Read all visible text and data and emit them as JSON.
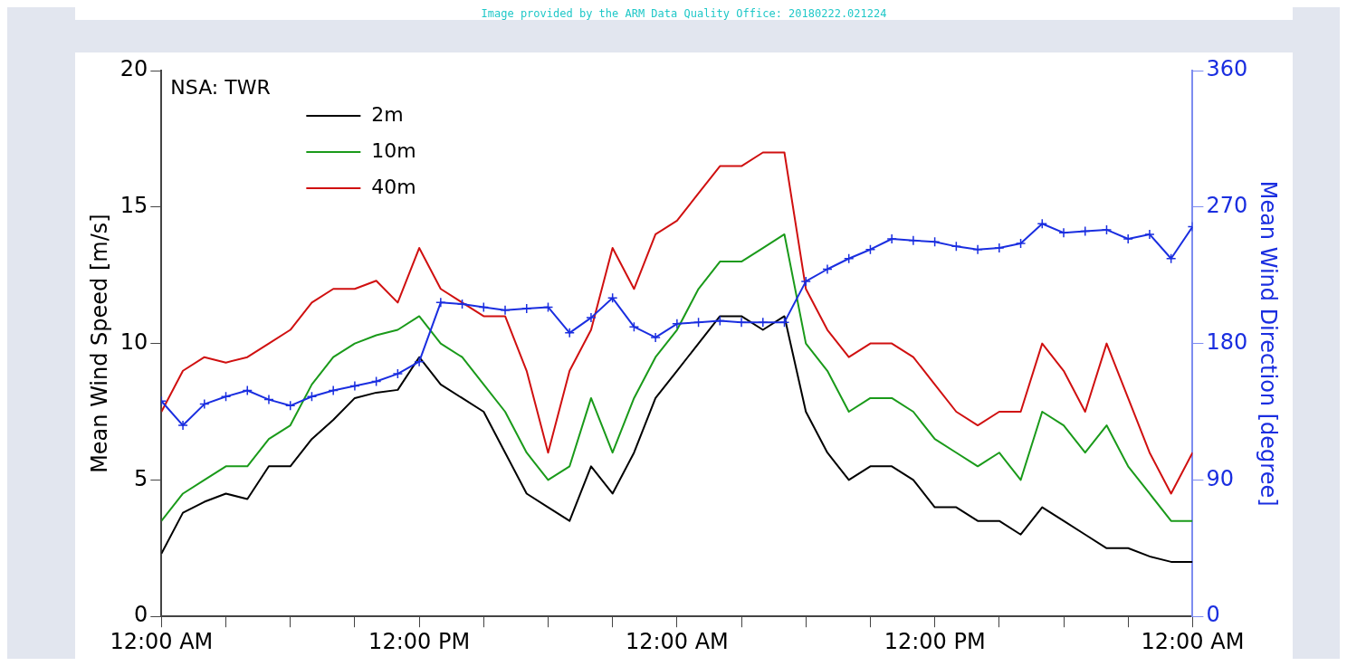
{
  "chart_data": {
    "type": "line",
    "ylabel": "Mean Wind Speed [m/s]",
    "y2label": "Mean Wind Direction [degree]",
    "legend_title": "NSA: TWR",
    "legend": "top left",
    "grid": false,
    "marker": "none",
    "line_style": "solid",
    "annotations": [
      "Image provided by the ARM Data Quality Office: 20180222.021224"
    ],
    "x": [
      "2018-02-20T00:00",
      "2018-02-20T01:00",
      "2018-02-20T02:00",
      "2018-02-20T03:00",
      "2018-02-20T04:00",
      "2018-02-20T05:00",
      "2018-02-20T06:00",
      "2018-02-20T07:00",
      "2018-02-20T08:00",
      "2018-02-20T09:00",
      "2018-02-20T10:00",
      "2018-02-20T11:00",
      "2018-02-20T12:00",
      "2018-02-20T13:00",
      "2018-02-20T14:00",
      "2018-02-20T15:00",
      "2018-02-20T16:00",
      "2018-02-20T17:00",
      "2018-02-20T18:00",
      "2018-02-20T19:00",
      "2018-02-20T20:00",
      "2018-02-20T21:00",
      "2018-02-20T22:00",
      "2018-02-20T23:00",
      "2018-02-21T00:00",
      "2018-02-21T01:00",
      "2018-02-21T02:00",
      "2018-02-21T03:00",
      "2018-02-21T04:00",
      "2018-02-21T05:00",
      "2018-02-21T06:00",
      "2018-02-21T07:00",
      "2018-02-21T08:00",
      "2018-02-21T09:00",
      "2018-02-21T10:00",
      "2018-02-21T11:00",
      "2018-02-21T12:00",
      "2018-02-21T13:00",
      "2018-02-21T14:00",
      "2018-02-21T15:00",
      "2018-02-21T16:00",
      "2018-02-21T17:00",
      "2018-02-21T18:00",
      "2018-02-21T19:00",
      "2018-02-21T20:00",
      "2018-02-21T21:00",
      "2018-02-21T22:00",
      "2018-02-21T23:00",
      "2018-02-22T00:00"
    ],
    "xlim": [
      "2018-02-20T00:00",
      "2018-02-22T00:00"
    ],
    "xticks": [
      {
        "value": "2018-02-20T00:00",
        "label": "12:00 AM"
      },
      {
        "value": "2018-02-20T03:00",
        "label": null
      },
      {
        "value": "2018-02-20T06:00",
        "label": null
      },
      {
        "value": "2018-02-20T09:00",
        "label": null
      },
      {
        "value": "2018-02-20T12:00",
        "label": "12:00 PM"
      },
      {
        "value": "2018-02-20T15:00",
        "label": null
      },
      {
        "value": "2018-02-20T18:00",
        "label": null
      },
      {
        "value": "2018-02-20T21:00",
        "label": null
      },
      {
        "value": "2018-02-21T00:00",
        "label": "12:00 AM"
      },
      {
        "value": "2018-02-21T03:00",
        "label": null
      },
      {
        "value": "2018-02-21T06:00",
        "label": null
      },
      {
        "value": "2018-02-21T09:00",
        "label": null
      },
      {
        "value": "2018-02-21T12:00",
        "label": "12:00 PM"
      },
      {
        "value": "2018-02-21T15:00",
        "label": null
      },
      {
        "value": "2018-02-21T18:00",
        "label": null
      },
      {
        "value": "2018-02-21T21:00",
        "label": null
      },
      {
        "value": "2018-02-22T00:00",
        "label": "12:00 AM"
      }
    ],
    "ylim": [
      0,
      20
    ],
    "yticks": [
      0,
      5,
      10,
      15,
      20
    ],
    "y2lim": [
      0,
      360
    ],
    "y2ticks": [
      0,
      90,
      180,
      270,
      360
    ],
    "series": [
      {
        "name": "2m",
        "color": "#000000",
        "values": [
          2.3,
          3.8,
          4.2,
          4.5,
          4.3,
          5.5,
          5.5,
          6.5,
          7.2,
          8,
          8.2,
          8.3,
          9.5,
          8.5,
          8,
          7.5,
          6,
          4.5,
          4,
          3.5,
          5.5,
          4.5,
          6,
          8,
          9,
          10,
          11,
          11,
          10.5,
          11,
          7.5,
          6,
          5,
          5.5,
          5.5,
          5,
          4,
          4,
          3.5,
          3.5,
          3,
          4,
          3.5,
          3,
          2.5,
          2.5,
          2.2,
          2,
          2
        ]
      },
      {
        "name": "10m",
        "color": "#1a9a1a",
        "values": [
          3.5,
          4.5,
          5,
          5.5,
          5.5,
          6.5,
          7,
          8.5,
          9.5,
          10,
          10.3,
          10.5,
          11,
          10,
          9.5,
          8.5,
          7.5,
          6,
          5,
          5.5,
          8,
          6,
          8,
          9.5,
          10.5,
          12,
          13,
          13,
          13.5,
          14,
          10,
          9,
          7.5,
          8,
          8,
          7.5,
          6.5,
          6,
          5.5,
          6,
          5,
          7.5,
          7,
          6,
          7,
          5.5,
          4.5,
          3.5,
          3.5
        ]
      },
      {
        "name": "40m",
        "color": "#d01010",
        "values": [
          7.5,
          9,
          9.5,
          9.3,
          9.5,
          10,
          10.5,
          11.5,
          12,
          12,
          12.3,
          11.5,
          13.5,
          12,
          11.5,
          11,
          11,
          9,
          6,
          9,
          10.5,
          13.5,
          12,
          14,
          14.5,
          15.5,
          16.5,
          16.5,
          17,
          17,
          12,
          10.5,
          9.5,
          10,
          10,
          9.5,
          8.5,
          7.5,
          7,
          7.5,
          7.5,
          10,
          9,
          7.5,
          10,
          8,
          6,
          4.5,
          6
        ]
      },
      {
        "color": "#1a2ee0",
        "axis": "y2",
        "marker": "cross",
        "values": [
          142,
          126,
          140,
          145,
          149,
          143,
          139,
          145,
          149,
          152,
          155,
          160,
          168,
          207,
          206,
          204,
          202,
          203,
          204,
          187,
          197,
          210,
          191,
          184,
          193,
          194,
          195,
          194,
          194,
          194,
          221,
          229,
          236,
          242,
          249,
          248,
          247,
          244,
          242,
          243,
          246,
          259,
          253,
          254,
          255,
          249,
          252,
          236,
          257
        ]
      }
    ]
  }
}
